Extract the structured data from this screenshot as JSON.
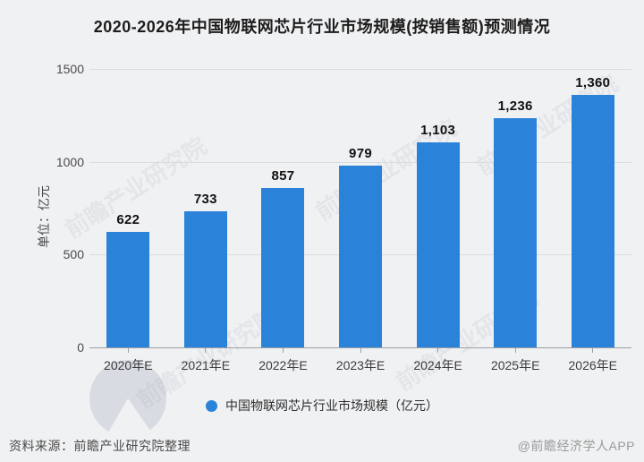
{
  "page": {
    "title": "2020-2026年中国物联网芯片行业市场规模(按销售额)预测情况",
    "footer": {
      "source": "资料来源：前瞻产业研究院整理",
      "credit": "@前瞻经济学人APP"
    },
    "watermark_text": "前瞻产业研究院"
  },
  "chart_data": {
    "type": "bar",
    "title": "2020-2026年中国物联网芯片行业市场规模(按销售额)预测情况",
    "categories": [
      "2020年E",
      "2021年E",
      "2022年E",
      "2023年E",
      "2024年E",
      "2025年E",
      "2026年E"
    ],
    "values": [
      622,
      733,
      857,
      979,
      1103,
      1236,
      1360
    ],
    "value_labels": [
      "622",
      "733",
      "857",
      "979",
      "1,103",
      "1,236",
      "1,360"
    ],
    "xlabel": "",
    "ylabel": "单位：亿元",
    "ylim": [
      0,
      1500
    ],
    "yticks": [
      0,
      500,
      1000,
      1500
    ],
    "grid": true,
    "legend": "中国物联网芯片行业市场规模（亿元）",
    "legend_position": "bottom",
    "bar_color": "#2b82d9",
    "colors": {
      "background": "#f0f1f3",
      "gridline": "#dadce0",
      "axis_line": "#9aa0a6",
      "title_text": "#1c1c1c",
      "value_label_text": "#111111",
      "watermark": "#7e8aa0"
    }
  }
}
